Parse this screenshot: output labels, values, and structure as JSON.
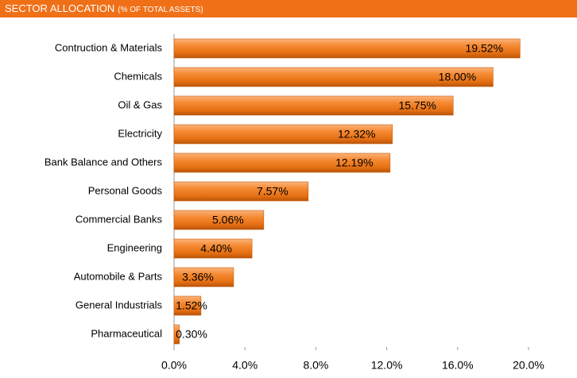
{
  "chart_data": {
    "type": "bar",
    "orientation": "horizontal",
    "title": "SECTOR ALLOCATION",
    "subtitle": "(% OF TOTAL ASSETS)",
    "categories": [
      "Contruction & Materials",
      "Chemicals",
      "Oil & Gas",
      "Electricity",
      "Bank Balance and Others",
      "Personal Goods",
      "Commercial Banks",
      "Engineering",
      "Automobile & Parts",
      "General Industrials",
      "Pharmaceutical"
    ],
    "values": [
      19.52,
      18.0,
      15.75,
      12.32,
      12.19,
      7.57,
      5.06,
      4.4,
      3.36,
      1.52,
      0.3
    ],
    "value_labels": [
      "19.52%",
      "18.00%",
      "15.75%",
      "12.32%",
      "12.19%",
      "7.57%",
      "5.06%",
      "4.40%",
      "3.36%",
      "1.52%",
      "0.30%"
    ],
    "color": "#f07d1a",
    "xlim": [
      0,
      20
    ],
    "xticks": [
      {
        "value": 0,
        "label": "0.0%"
      },
      {
        "value": 4,
        "label": "4.0%"
      },
      {
        "value": 8,
        "label": "8.0%"
      },
      {
        "value": 12,
        "label": "12.0%"
      },
      {
        "value": 16,
        "label": "16.0%"
      },
      {
        "value": 20,
        "label": "20.0%"
      }
    ]
  }
}
